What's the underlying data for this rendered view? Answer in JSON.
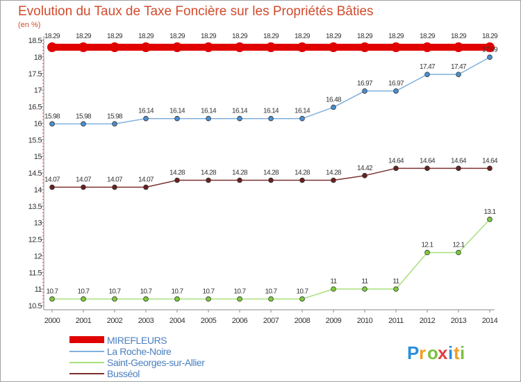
{
  "chart_data": {
    "type": "line",
    "title": "Evolution du Taux de Taxe Foncière sur les Propriétés Bâties",
    "ylabel": "(en %)",
    "xlabel": "",
    "x": [
      "2000",
      "2001",
      "2002",
      "2003",
      "2004",
      "2005",
      "2006",
      "2007",
      "2008",
      "2009",
      "2010",
      "2011",
      "2012",
      "2013",
      "2014"
    ],
    "ylim": [
      10.5,
      18.5
    ],
    "yticks": [
      "10.5",
      "11",
      "11.5",
      "12",
      "12.5",
      "13",
      "13.5",
      "14",
      "14.5",
      "15",
      "15.5",
      "16",
      "16.5",
      "17",
      "17.5",
      "18",
      "18.5"
    ],
    "grid": false,
    "legend_position": "bottom-left",
    "series": [
      {
        "name": "MIREFLEURS",
        "color": "#e00000",
        "point_color": "#e00000",
        "values": [
          18.29,
          18.29,
          18.29,
          18.29,
          18.29,
          18.29,
          18.29,
          18.29,
          18.29,
          18.29,
          18.29,
          18.29,
          18.29,
          18.29,
          18.29
        ],
        "labels": [
          "18.29",
          "18.29",
          "18.29",
          "18.29",
          "18.29",
          "18.29",
          "18.29",
          "18.29",
          "18.29",
          "18.29",
          "18.29",
          "18.29",
          "18.29",
          "18.29",
          "18.29"
        ]
      },
      {
        "name": "La Roche-Noire",
        "color": "#7fb0dc",
        "point_color": "#4a8fd0",
        "values": [
          15.98,
          15.98,
          15.98,
          16.14,
          16.14,
          16.14,
          16.14,
          16.14,
          16.14,
          16.48,
          16.97,
          16.97,
          17.47,
          17.47,
          17.99
        ],
        "labels": [
          "15.98",
          "15.98",
          "15.98",
          "16.14",
          "16.14",
          "16.14",
          "16.14",
          "16.14",
          "16.14",
          "16.48",
          "16.97",
          "16.97",
          "17.47",
          "17.47",
          "17.99"
        ]
      },
      {
        "name": "Saint-Georges-sur-Allier",
        "color": "#a8e07a",
        "point_color": "#7ccc3a",
        "values": [
          10.7,
          10.7,
          10.7,
          10.7,
          10.7,
          10.7,
          10.7,
          10.7,
          10.7,
          11,
          11,
          11,
          12.1,
          12.1,
          13.1
        ],
        "labels": [
          "10.7",
          "10.7",
          "10.7",
          "10.7",
          "10.7",
          "10.7",
          "10.7",
          "10.7",
          "10.7",
          "11",
          "11",
          "11",
          "12.1",
          "12.1",
          "13.1"
        ]
      },
      {
        "name": "Busséol",
        "color": "#7a3030",
        "point_color": "#6a2020",
        "values": [
          14.07,
          14.07,
          14.07,
          14.07,
          14.28,
          14.28,
          14.28,
          14.28,
          14.28,
          14.28,
          14.42,
          14.64,
          14.64,
          14.64,
          14.64
        ],
        "labels": [
          "14.07",
          "14.07",
          "14.07",
          "14.07",
          "14.28",
          "14.28",
          "14.28",
          "14.28",
          "14.28",
          "14.28",
          "14.42",
          "14.64",
          "14.64",
          "14.64",
          "14.64"
        ]
      }
    ]
  },
  "brand": {
    "letters": [
      "P",
      "r",
      "o",
      "x",
      "i",
      "t",
      "i"
    ],
    "colors": [
      "#2a8fd8",
      "#f0a020",
      "#7cc242",
      "#e04040",
      "#2a8fd8",
      "#f0a020",
      "#7cc242"
    ]
  }
}
